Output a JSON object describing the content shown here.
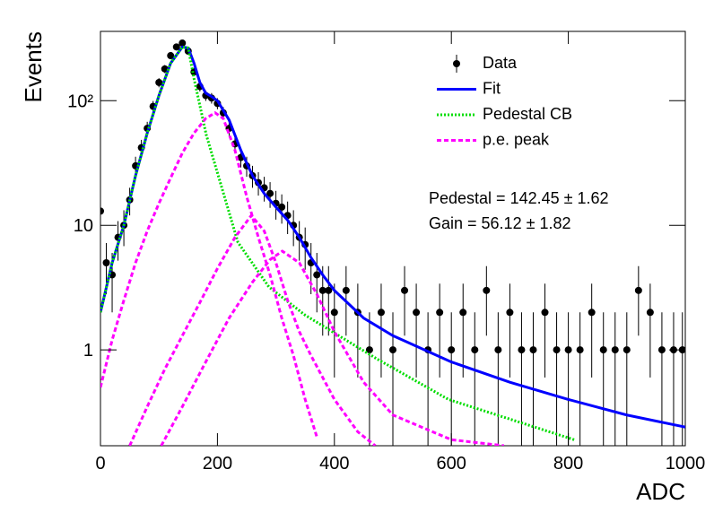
{
  "chart_data": {
    "type": "line",
    "x_label": "ADC",
    "y_label": "Events",
    "xlim": [
      0,
      1000
    ],
    "xticks": [
      0,
      200,
      400,
      600,
      800,
      1000
    ],
    "ylim": [
      0.17,
      360
    ],
    "yticks": [
      1,
      10,
      {
        "value": 100,
        "label": "10²"
      }
    ],
    "log_y": true,
    "annotations": [
      "Pedestal = 142.45 ± 1.62",
      "Gain = 56.12 ± 1.82"
    ],
    "series": [
      {
        "name": "Data",
        "color": "#000000",
        "style": "points",
        "x": [
          0,
          10,
          20,
          30,
          40,
          50,
          60,
          70,
          80,
          90,
          100,
          110,
          120,
          130,
          140,
          150,
          160,
          170,
          180,
          190,
          200,
          210,
          220,
          230,
          240,
          250,
          260,
          270,
          280,
          290,
          300,
          310,
          320,
          330,
          340,
          350,
          360,
          370,
          380,
          390,
          400,
          420,
          440,
          460,
          480,
          500,
          520,
          540,
          560,
          580,
          600,
          620,
          640,
          660,
          680,
          700,
          720,
          740,
          760,
          780,
          800,
          820,
          840,
          860,
          880,
          900,
          920,
          940,
          960,
          980,
          995
        ],
        "values": [
          13,
          5,
          4,
          8,
          10,
          16,
          30,
          42,
          60,
          90,
          140,
          180,
          230,
          270,
          290,
          250,
          170,
          130,
          110,
          105,
          95,
          80,
          60,
          45,
          35,
          30,
          25,
          22,
          20,
          18,
          15,
          14,
          12,
          10,
          8,
          7,
          5,
          4,
          3,
          3,
          2,
          3,
          2,
          1,
          2,
          1,
          3,
          2,
          1,
          2,
          1,
          2,
          1,
          3,
          1,
          2,
          1,
          1,
          2,
          1,
          1,
          1,
          2,
          1,
          1,
          1,
          3,
          2,
          1,
          1,
          1
        ],
        "errors": [
          3.6,
          2.2,
          2,
          2.8,
          3.2,
          4,
          5.5,
          6.5,
          7.7,
          9.5,
          11.8,
          13.4,
          15.2,
          16.4,
          17,
          15.8,
          13,
          11.4,
          10.5,
          10.2,
          9.7,
          8.9,
          7.7,
          6.7,
          5.9,
          5.5,
          5,
          4.7,
          4.5,
          4.2,
          3.9,
          3.7,
          3.5,
          3.2,
          2.8,
          2.6,
          2.2,
          2,
          1.7,
          1.7,
          1.4,
          1.7,
          1.4,
          1,
          1.4,
          1,
          1.7,
          1.4,
          1,
          1.4,
          1,
          1.4,
          1,
          1.7,
          1,
          1.4,
          1,
          1,
          1.4,
          1,
          1,
          1,
          1.4,
          1,
          1,
          1,
          1.7,
          1.4,
          1,
          1,
          1
        ]
      },
      {
        "name": "Fit",
        "color": "#0000ff",
        "style": "solid",
        "x": [
          0,
          20,
          40,
          60,
          80,
          100,
          120,
          140,
          150,
          160,
          170,
          180,
          190,
          200,
          220,
          240,
          260,
          280,
          300,
          320,
          340,
          360,
          380,
          400,
          450,
          500,
          600,
          700,
          800,
          900,
          1000
        ],
        "values": [
          2,
          5,
          10,
          25,
          55,
          110,
          200,
          270,
          265,
          200,
          140,
          115,
          108,
          100,
          70,
          40,
          25,
          18,
          14,
          11,
          8,
          5.5,
          4,
          3,
          1.8,
          1.3,
          0.8,
          0.55,
          0.4,
          0.3,
          0.24
        ]
      },
      {
        "name": "Pedestal CB",
        "color": "#00dd00",
        "style": "dotted",
        "x": [
          0,
          20,
          40,
          60,
          80,
          100,
          120,
          140,
          150,
          160,
          181,
          235,
          288,
          350,
          472,
          595,
          810
        ],
        "values": [
          2,
          5,
          10,
          25,
          55,
          110,
          200,
          270,
          265,
          150,
          53,
          7.3,
          3.2,
          1.9,
          0.85,
          0.4,
          0.19
        ]
      },
      {
        "name": "p.e. peak",
        "color": "#ff00ff",
        "style": "dashed",
        "curves": [
          {
            "x": [
              0,
              20,
              40,
              60,
              80,
              100,
              120,
              140,
              160,
              180,
              196,
              210,
              230,
              250,
              270,
              290,
              310,
              330,
              350,
              370
            ],
            "values": [
              0.5,
              1.2,
              2.5,
              5,
              9,
              15,
              24,
              38,
              55,
              72,
              80,
              72,
              40,
              17,
              8,
              4,
              1.8,
              0.9,
              0.4,
              0.2
            ]
          },
          {
            "x": [
              50,
              80,
              110,
              140,
              170,
              200,
              230,
              258,
              280,
              300,
              320,
              340,
              360,
              380,
              400,
              440,
              470
            ],
            "values": [
              0.17,
              0.35,
              0.7,
              1.3,
              2.4,
              4.5,
              8,
              12,
              9,
              5,
              2.5,
              1.4,
              0.9,
              0.6,
              0.4,
              0.22,
              0.17
            ]
          },
          {
            "x": [
              104,
              140,
              180,
              220,
              260,
              290,
              311,
              340,
              370,
              400,
              450,
              500,
              600,
              690
            ],
            "values": [
              0.17,
              0.35,
              0.8,
              1.8,
              3.5,
              5.3,
              6.2,
              5,
              2.8,
              1.4,
              0.55,
              0.3,
              0.19,
              0.17
            ]
          }
        ]
      }
    ]
  }
}
